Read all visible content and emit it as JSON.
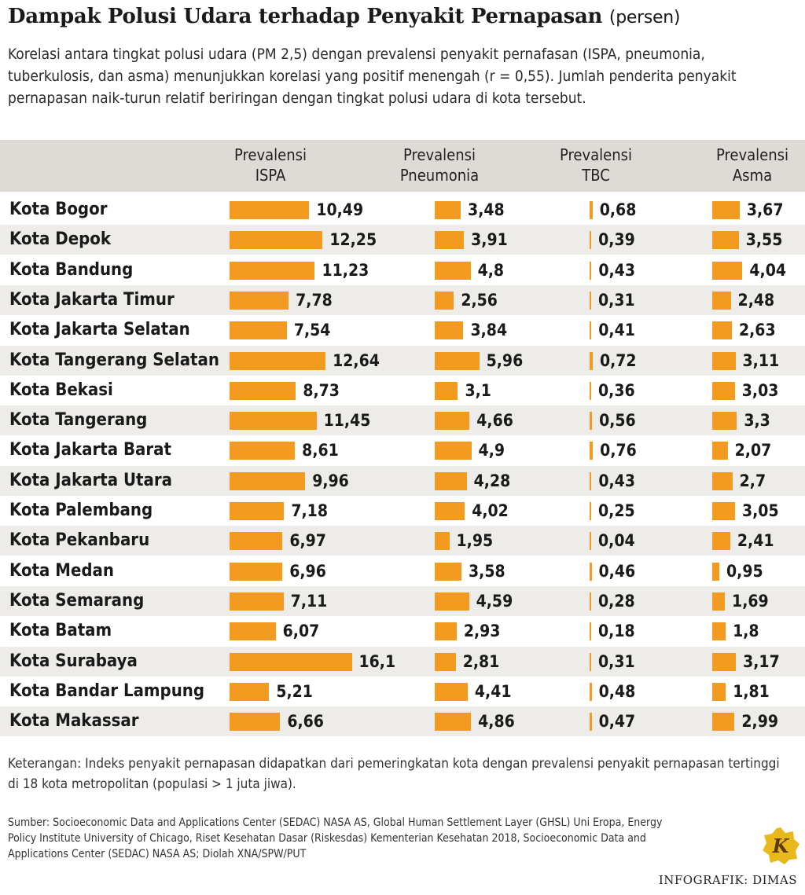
{
  "title": "Dampak Polusi Udara terhadap Penyakit Pernapasan",
  "title_unit": "(persen)",
  "subtitle": "Korelasi antara tingkat polusi udara (PM 2,5) dengan prevalensi penyakit pernafasan (ISPA, pneumonia, tuberkulosis, dan asma) menunjukkan korelasi yang positif menengah (r = 0,55). Jumlah penderita penyakit pernapasan naik-turun relatif beriringan dengan tingkat polusi udara di kota tersebut.",
  "chart_data": {
    "type": "bar",
    "orientation": "horizontal",
    "categories": [
      "Kota Bogor",
      "Kota Depok",
      "Kota Bandung",
      "Kota Jakarta Timur",
      "Kota Jakarta Selatan",
      "Kota Tangerang Selatan",
      "Kota Bekasi",
      "Kota Tangerang",
      "Kota Jakarta Barat",
      "Kota Jakarta Utara",
      "Kota Palembang",
      "Kota Pekanbaru",
      "Kota Medan",
      "Kota Semarang",
      "Kota Batam",
      "Kota Surabaya",
      "Kota Bandar Lampung",
      "Kota Makassar"
    ],
    "series": [
      {
        "name": "Prevalensi ISPA",
        "header": [
          "Prevalensi",
          "ISPA"
        ],
        "values": [
          10.49,
          12.25,
          11.23,
          7.78,
          7.54,
          12.64,
          8.73,
          11.45,
          8.61,
          9.96,
          7.18,
          6.97,
          6.96,
          7.11,
          6.07,
          16.1,
          5.21,
          6.66
        ],
        "labels": [
          "10,49",
          "12,25",
          "11,23",
          "7,78",
          "7,54",
          "12,64",
          "8,73",
          "11,45",
          "8,61",
          "9,96",
          "7,18",
          "6,97",
          "6,96",
          "7,11",
          "6,07",
          "16,1",
          "5,21",
          "6,66"
        ]
      },
      {
        "name": "Prevalensi Pneumonia",
        "header": [
          "Prevalensi",
          "Pneumonia"
        ],
        "values": [
          3.48,
          3.91,
          4.8,
          2.56,
          3.84,
          5.96,
          3.1,
          4.66,
          4.9,
          4.28,
          4.02,
          1.95,
          3.58,
          4.59,
          2.93,
          2.81,
          4.41,
          4.86
        ],
        "labels": [
          "3,48",
          "3,91",
          "4,8",
          "2,56",
          "3,84",
          "5,96",
          "3,1",
          "4,66",
          "4,9",
          "4,28",
          "4,02",
          "1,95",
          "3,58",
          "4,59",
          "2,93",
          "2,81",
          "4,41",
          "4,86"
        ]
      },
      {
        "name": "Prevalensi TBC",
        "header": [
          "Prevalensi",
          "TBC"
        ],
        "values": [
          0.68,
          0.39,
          0.43,
          0.31,
          0.41,
          0.72,
          0.36,
          0.56,
          0.76,
          0.43,
          0.25,
          0.04,
          0.46,
          0.28,
          0.18,
          0.31,
          0.48,
          0.47
        ],
        "labels": [
          "0,68",
          "0,39",
          "0,43",
          "0,31",
          "0,41",
          "0,72",
          "0,36",
          "0,56",
          "0,76",
          "0,43",
          "0,25",
          "0,04",
          "0,46",
          "0,28",
          "0,18",
          "0,31",
          "0,48",
          "0,47"
        ]
      },
      {
        "name": "Prevalensi Asma",
        "header": [
          "Prevalensi",
          "Asma"
        ],
        "values": [
          3.67,
          3.55,
          4.04,
          2.48,
          2.63,
          3.11,
          3.03,
          3.3,
          2.07,
          2.7,
          3.05,
          2.41,
          0.95,
          1.69,
          1.8,
          3.17,
          1.81,
          2.99
        ],
        "labels": [
          "3,67",
          "3,55",
          "4,04",
          "2,48",
          "2,63",
          "3,11",
          "3,03",
          "3,3",
          "2,07",
          "2,7",
          "3,05",
          "2,41",
          "0,95",
          "1,69",
          "1,8",
          "3,17",
          "1,81",
          "2,99"
        ]
      }
    ],
    "bar_color": "#f39a21",
    "unit": "persen"
  },
  "note": "Keterangan: Indeks penyakit pernapasan didapatkan dari pemeringkatan kota dengan prevalensi penyakit pernapasan tertinggi di 18 kota metropolitan (populasi > 1 juta jiwa).",
  "source": "Sumber: Socioeconomic Data and Applications Center (SEDAC) NASA AS, Global Human Settlement Layer (GHSL) Uni Eropa, Energy Policy Institute University of Chicago, Riset Kesehatan Dasar (Riskesdas) Kementerian Kesehatan 2018, Socioeconomic Data and Applications Center (SEDAC) NASA AS; Diolah XNA/SPW/PUT",
  "credit": "INFOGRAFIK: DIMAS",
  "logo_letter": "K",
  "colors": {
    "accent": "#f39a21",
    "header_band": "#dedbd6",
    "row_shade": "#eeece9",
    "logo": "#e8b81c"
  }
}
